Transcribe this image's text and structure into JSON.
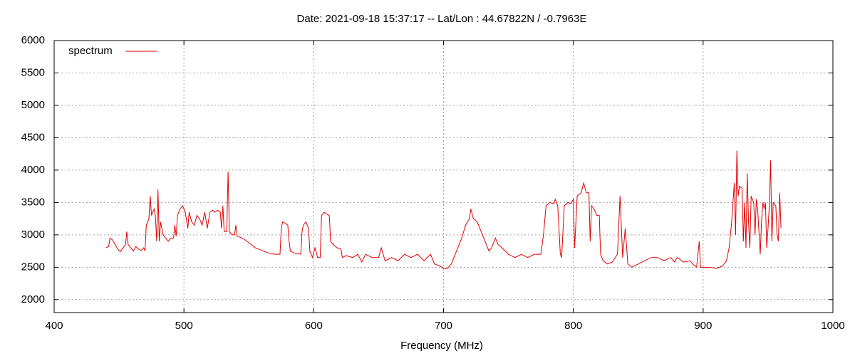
{
  "chart_data": {
    "type": "line",
    "title": "Date: 2021-09-18 15:37:17  --  Lat/Lon : 44.67822N / -0.7963E",
    "x_label": "Frequency (MHz)",
    "xlim": [
      400,
      1000
    ],
    "xticks": [
      400,
      500,
      600,
      700,
      800,
      900,
      1000
    ],
    "ylim": [
      1800,
      6000
    ],
    "yticks": [
      2000,
      2500,
      3000,
      3500,
      4000,
      4500,
      5000,
      5500,
      6000
    ],
    "grid": true,
    "legend": "upper-left",
    "series": [
      {
        "name": "spectrum",
        "color": "#e00000",
        "x": [
          440,
          442,
          443,
          445,
          447,
          449,
          451,
          453,
          455,
          456,
          457,
          459,
          461,
          463,
          465,
          467,
          469,
          470,
          471,
          473,
          474,
          475,
          476,
          477,
          478,
          479,
          480,
          481,
          482,
          484,
          486,
          488,
          490,
          492,
          493,
          494,
          495,
          497,
          499,
          501,
          503,
          504,
          506,
          508,
          510,
          512,
          514,
          516,
          518,
          520,
          522,
          524,
          526,
          528,
          529,
          530,
          531,
          533,
          534,
          535,
          537,
          539,
          540,
          541,
          545,
          550,
          555,
          560,
          565,
          570,
          574,
          575,
          576,
          578,
          580,
          581,
          582,
          585,
          590,
          591,
          592,
          594,
          596,
          597,
          599,
          601,
          603,
          605,
          606,
          608,
          610,
          612,
          613,
          615,
          618,
          621,
          622,
          625,
          630,
          634,
          637,
          640,
          645,
          650,
          652,
          655,
          660,
          665,
          670,
          675,
          680,
          685,
          690,
          693,
          697,
          700,
          703,
          706,
          710,
          714,
          717,
          720,
          721,
          723,
          726,
          729,
          732,
          735,
          737,
          740,
          742,
          745,
          750,
          755,
          760,
          765,
          770,
          775,
          777,
          779,
          782,
          785,
          786,
          788,
          790,
          791,
          793,
          796,
          798,
          800,
          801,
          803,
          806,
          808,
          810,
          812,
          813,
          814,
          816,
          818,
          820,
          821,
          823,
          826,
          830,
          834,
          836,
          838,
          840,
          842,
          845,
          850,
          855,
          860,
          865,
          870,
          875,
          878,
          880,
          885,
          890,
          892,
          895,
          897,
          898,
          905,
          910,
          915,
          918,
          920,
          922,
          923,
          924,
          925,
          926,
          927,
          928,
          930,
          931,
          932,
          933,
          934,
          935,
          936,
          937,
          938,
          939,
          940,
          941,
          942,
          944,
          945,
          946,
          947,
          948,
          949,
          950,
          951,
          952,
          953,
          954,
          956,
          957,
          958,
          959,
          960
        ],
        "values": [
          2800,
          2820,
          2950,
          2920,
          2850,
          2780,
          2740,
          2800,
          2850,
          3050,
          2850,
          2800,
          2750,
          2820,
          2780,
          2760,
          2800,
          2750,
          3150,
          3250,
          3600,
          3300,
          3350,
          3400,
          3300,
          2900,
          3700,
          2900,
          3200,
          3000,
          2950,
          2900,
          2950,
          2950,
          3150,
          2980,
          3300,
          3400,
          3450,
          3350,
          3100,
          3350,
          3200,
          3150,
          3300,
          3250,
          3150,
          3350,
          3100,
          3350,
          3380,
          3350,
          3380,
          3350,
          3100,
          3450,
          3050,
          3050,
          3980,
          3050,
          3000,
          3000,
          3150,
          2980,
          2950,
          2880,
          2800,
          2760,
          2720,
          2700,
          2700,
          3100,
          3200,
          3180,
          3150,
          2900,
          2750,
          2720,
          2700,
          3050,
          3150,
          3200,
          3100,
          2750,
          2650,
          2800,
          2650,
          2650,
          3300,
          3350,
          3320,
          3300,
          2900,
          2850,
          2800,
          2780,
          2650,
          2680,
          2650,
          2700,
          2580,
          2700,
          2650,
          2650,
          2800,
          2600,
          2650,
          2600,
          2700,
          2650,
          2700,
          2600,
          2700,
          2550,
          2520,
          2480,
          2480,
          2550,
          2750,
          2950,
          3150,
          3250,
          3400,
          3250,
          3200,
          3050,
          2900,
          2750,
          2800,
          2950,
          2850,
          2800,
          2700,
          2650,
          2700,
          2650,
          2700,
          2700,
          3000,
          3450,
          3500,
          3480,
          3550,
          3450,
          2700,
          2650,
          3450,
          3500,
          3480,
          3550,
          2800,
          3600,
          3650,
          3800,
          3650,
          3650,
          2900,
          3450,
          3400,
          3300,
          3300,
          2700,
          2600,
          2550,
          2580,
          2700,
          3600,
          2650,
          3100,
          2550,
          2500,
          2550,
          2600,
          2650,
          2650,
          2600,
          2650,
          2580,
          2650,
          2580,
          2600,
          2550,
          2500,
          2900,
          2500,
          2500,
          2480,
          2520,
          2600,
          2800,
          3200,
          3500,
          3800,
          3000,
          4300,
          3600,
          3750,
          3720,
          2900,
          3500,
          2800,
          3950,
          3200,
          2800,
          3600,
          3550,
          3500,
          3000,
          3550,
          3400,
          2700,
          3200,
          3500,
          3400,
          3500,
          2800,
          3100,
          3450,
          4150,
          2900,
          3500,
          3450,
          3000,
          2900,
          3650,
          3100
        ]
      }
    ]
  }
}
